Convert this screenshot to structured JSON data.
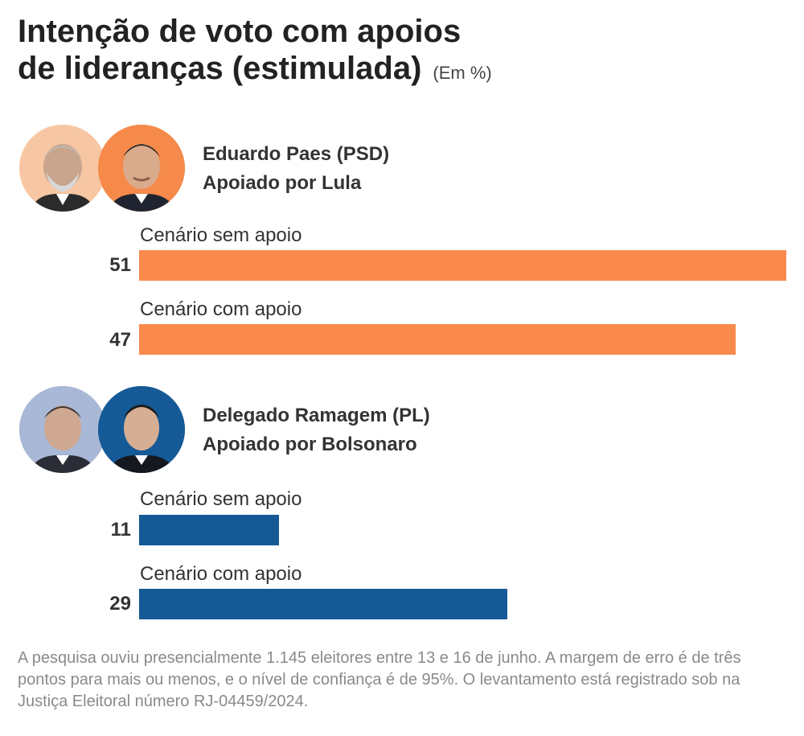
{
  "title_line1": "Intenção de voto com apoios",
  "title_line2": "de lideranças (estimulada)",
  "unit": "(Em %)",
  "colors": {
    "paes": "#fa8a4c",
    "ramagem": "#155a96"
  },
  "chart_data": {
    "type": "bar",
    "orientation": "horizontal",
    "xlim": [
      0,
      51
    ],
    "groups": [
      {
        "candidate": "Eduardo Paes (PSD)",
        "support": "Apoiado por Lula",
        "color": "#fa8a4c",
        "avatars": [
          "lula-portrait-icon",
          "paes-portrait-icon"
        ],
        "bars": [
          {
            "label": "Cenário sem apoio",
            "value": 51
          },
          {
            "label": "Cenário com apoio",
            "value": 47
          }
        ]
      },
      {
        "candidate": "Delegado Ramagem (PL)",
        "support": "Apoiado por Bolsonaro",
        "color": "#155a96",
        "avatars": [
          "bolsonaro-portrait-icon",
          "ramagem-portrait-icon"
        ],
        "bars": [
          {
            "label": "Cenário sem apoio",
            "value": 11
          },
          {
            "label": "Cenário com apoio",
            "value": 29
          }
        ]
      }
    ]
  },
  "footnote": "A pesquisa ouviu presencialmente 1.145 eleitores entre 13 e 16 de junho. A margem de erro é de três pontos para mais ou menos, e o nível de confiança é de 95%. O levantamento está registrado sob na Justiça Eleitoral número RJ-04459/2024."
}
